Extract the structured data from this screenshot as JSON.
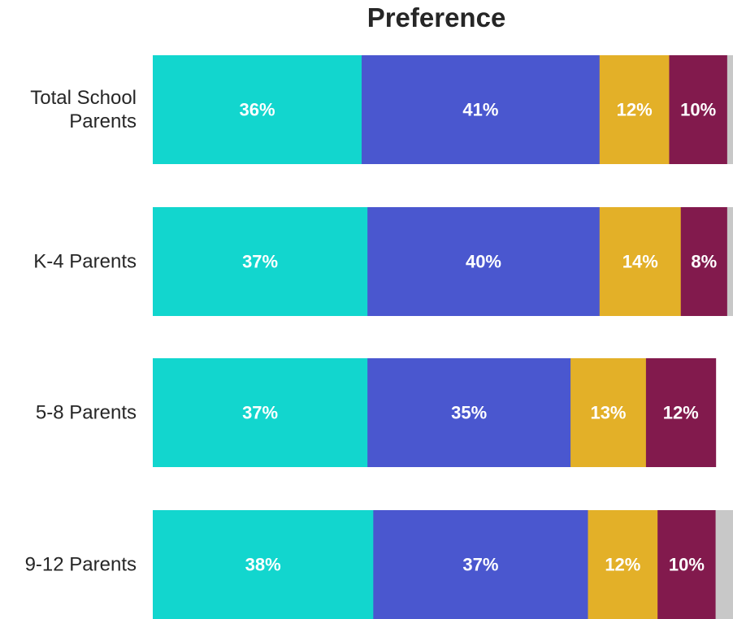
{
  "chart_data": {
    "type": "bar",
    "orientation": "horizontal",
    "stacked": true,
    "title": "Preference",
    "categories": [
      [
        "Total School",
        "Parents"
      ],
      [
        "K-4 Parents"
      ],
      [
        "5-8 Parents"
      ],
      [
        "9-12 Parents"
      ]
    ],
    "series": [
      {
        "values": [
          36,
          37,
          37,
          38
        ],
        "labels": [
          "36%",
          "37%",
          "37%",
          "38%"
        ],
        "color": "#12d6ce"
      },
      {
        "values": [
          41,
          40,
          35,
          37
        ],
        "labels": [
          "41%",
          "40%",
          "35%",
          "37%"
        ],
        "color": "#4a57cf"
      },
      {
        "values": [
          12,
          14,
          13,
          12
        ],
        "labels": [
          "12%",
          "14%",
          "13%",
          "12%"
        ],
        "color": "#e3b028"
      },
      {
        "values": [
          10,
          8,
          12,
          10
        ],
        "labels": [
          "10%",
          "8%",
          "12%",
          "10%"
        ],
        "color": "#821a4d"
      },
      {
        "values": [
          1,
          1,
          0,
          3
        ],
        "labels": [
          "",
          "",
          "",
          ""
        ],
        "color": "#c8c8c8"
      }
    ],
    "xlim": [
      0,
      100
    ],
    "grid": false,
    "legend": "none"
  }
}
